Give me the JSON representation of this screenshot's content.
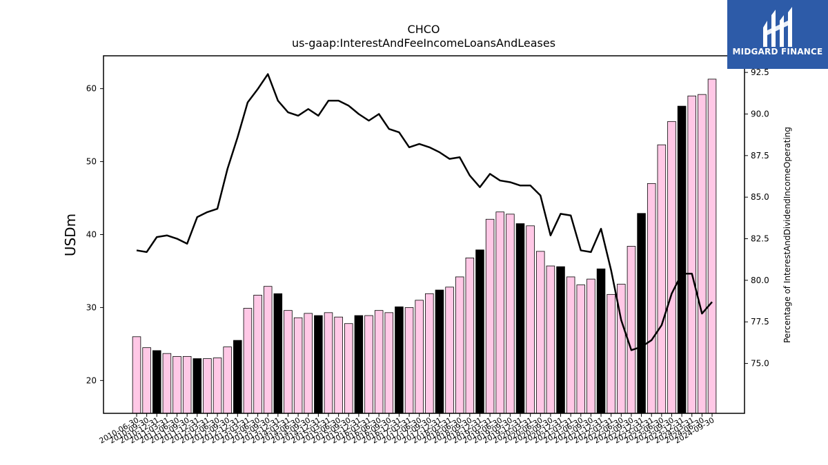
{
  "chart_data": {
    "type": "bar",
    "title": "CHCO",
    "subtitle": "us-gaap:InterestAndFeeIncomeLoansAndLeases",
    "ylabel": "USDm",
    "y2label": "Percentage of InterestAndDividendIncomeOperating",
    "ylim": [
      15.5,
      64.5
    ],
    "y2lim": [
      72.0,
      93.5
    ],
    "yticks": [
      20,
      30,
      40,
      50,
      60
    ],
    "y2ticks": [
      "75.0",
      "77.5",
      "80.0",
      "82.5",
      "85.0",
      "87.5",
      "90.0",
      "92.5"
    ],
    "bar_colors": {
      "quarterly": "#ffc8e6",
      "annual": "#000000"
    },
    "line_color": "#000000",
    "grid": false,
    "categories": [
      "2010-06-30",
      "2010-09-30",
      "2010-12-31",
      "2011-03-31",
      "2011-06-30",
      "2011-09-30",
      "2011-12-31",
      "2012-03-31",
      "2012-06-30",
      "2012-09-30",
      "2012-12-31",
      "2013-03-31",
      "2013-06-30",
      "2013-09-30",
      "2013-12-31",
      "2014-03-31",
      "2014-06-30",
      "2014-09-30",
      "2014-12-31",
      "2015-03-31",
      "2015-06-30",
      "2015-09-30",
      "2015-12-31",
      "2016-03-31",
      "2016-06-30",
      "2016-09-30",
      "2016-12-31",
      "2017-03-31",
      "2017-06-30",
      "2017-09-30",
      "2017-12-31",
      "2018-03-31",
      "2018-06-30",
      "2018-09-30",
      "2018-12-31",
      "2019-03-31",
      "2019-06-30",
      "2019-09-30",
      "2019-12-31",
      "2020-03-31",
      "2020-06-30",
      "2020-09-30",
      "2020-12-31",
      "2021-03-31",
      "2021-06-30",
      "2021-09-30",
      "2021-12-31",
      "2022-03-31",
      "2022-06-30",
      "2022-09-30",
      "2022-12-31",
      "2023-03-31",
      "2023-06-30",
      "2023-09-30",
      "2023-12-31",
      "2024-03-31",
      "2024-06-30",
      "2024-09-30"
    ],
    "series": [
      {
        "kind": "bar",
        "values": [
          26.0,
          24.5,
          24.1,
          23.7,
          23.3,
          23.3,
          23.0,
          23.0,
          23.1,
          24.6,
          25.5,
          29.9,
          31.7,
          32.9,
          31.9,
          29.6,
          28.6,
          29.2,
          28.9,
          29.3,
          28.7,
          27.8,
          28.9,
          28.9,
          29.6,
          29.3,
          30.1,
          30.0,
          31.0,
          31.9,
          32.4,
          32.8,
          34.2,
          36.8,
          37.9,
          42.1,
          43.1,
          42.8,
          41.5,
          41.2,
          37.7,
          35.7,
          35.6,
          34.2,
          33.1,
          33.9,
          35.3,
          31.8,
          33.2,
          38.4,
          42.9,
          47.0,
          52.3,
          55.5,
          57.6,
          59.0,
          59.2,
          61.3
        ],
        "annual": [
          false,
          false,
          true,
          false,
          false,
          false,
          true,
          false,
          false,
          false,
          true,
          false,
          false,
          false,
          true,
          false,
          false,
          false,
          true,
          false,
          false,
          false,
          true,
          false,
          false,
          false,
          true,
          false,
          false,
          false,
          true,
          false,
          false,
          false,
          true,
          false,
          false,
          false,
          true,
          false,
          false,
          false,
          true,
          false,
          false,
          false,
          true,
          false,
          false,
          false,
          true,
          false,
          false,
          false,
          true,
          false,
          false,
          false
        ]
      },
      {
        "kind": "line",
        "values": [
          81.8,
          81.7,
          82.6,
          82.7,
          82.5,
          82.2,
          83.8,
          84.1,
          84.3,
          86.7,
          88.6,
          90.7,
          91.5,
          92.4,
          90.8,
          90.1,
          89.9,
          90.3,
          89.9,
          90.8,
          90.8,
          90.5,
          90.0,
          89.6,
          90.0,
          89.1,
          88.9,
          88.0,
          88.2,
          88.0,
          87.7,
          87.3,
          87.4,
          86.3,
          85.6,
          86.4,
          86.0,
          85.9,
          85.7,
          85.7,
          85.1,
          82.7,
          84.0,
          83.9,
          81.8,
          81.7,
          83.1,
          80.6,
          77.6,
          75.8,
          76.0,
          76.4,
          77.3,
          79.2,
          80.4,
          80.4,
          78.0,
          78.7
        ]
      }
    ]
  },
  "logo": {
    "name": "MIDGARD FINANCE"
  }
}
